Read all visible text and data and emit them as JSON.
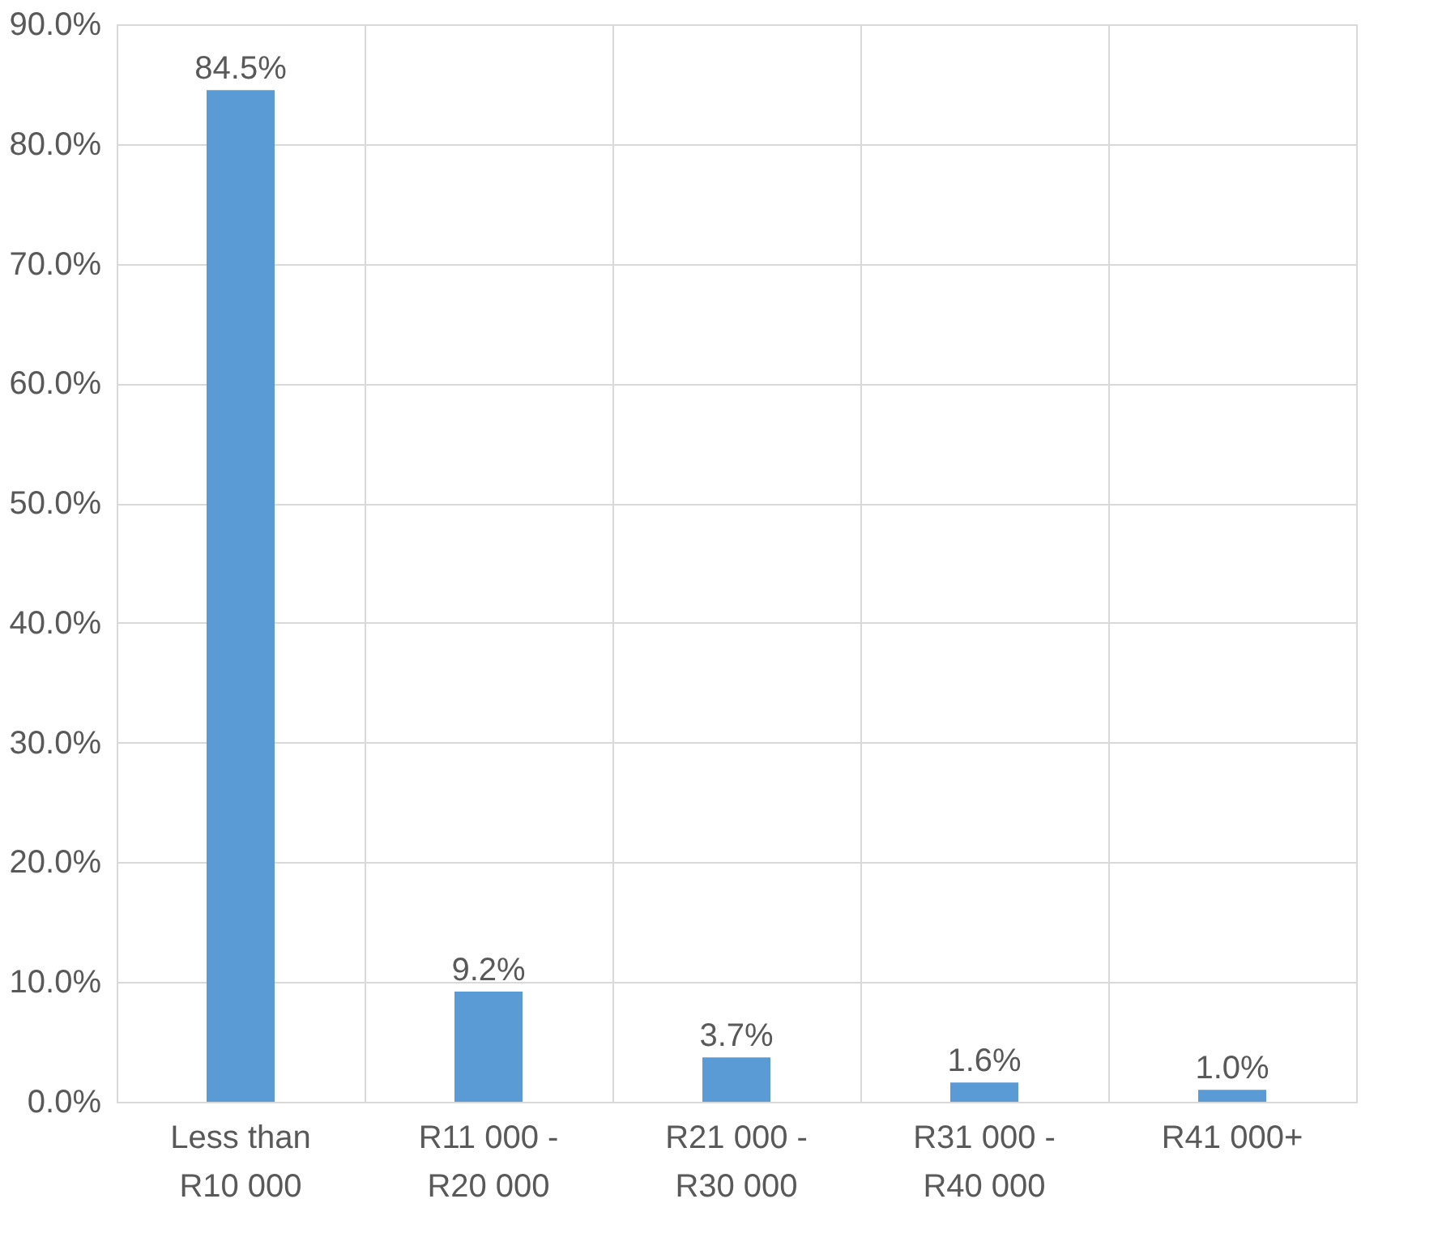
{
  "chart_data": {
    "type": "bar",
    "categories": [
      "Less than R10 000",
      "R11 000 - R20 000",
      "R21 000 - R30 000",
      "R31 000 - R40 000",
      "R41 000+"
    ],
    "values": [
      84.5,
      9.2,
      3.7,
      1.6,
      1.0
    ],
    "value_labels": [
      "84.5%",
      "9.2%",
      "3.7%",
      "1.6%",
      "1.0%"
    ],
    "color": "#5b9bd5",
    "ylim": [
      0,
      90
    ],
    "yticks": [
      {
        "value": 0,
        "label": "0.0%"
      },
      {
        "value": 10,
        "label": "10.0%"
      },
      {
        "value": 20,
        "label": "20.0%"
      },
      {
        "value": 30,
        "label": "30.0%"
      },
      {
        "value": 40,
        "label": "40.0%"
      },
      {
        "value": 50,
        "label": "50.0%"
      },
      {
        "value": 60,
        "label": "60.0%"
      },
      {
        "value": 70,
        "label": "70.0%"
      },
      {
        "value": 80,
        "label": "80.0%"
      },
      {
        "value": 90,
        "label": "90.0%"
      }
    ],
    "grid": true
  }
}
